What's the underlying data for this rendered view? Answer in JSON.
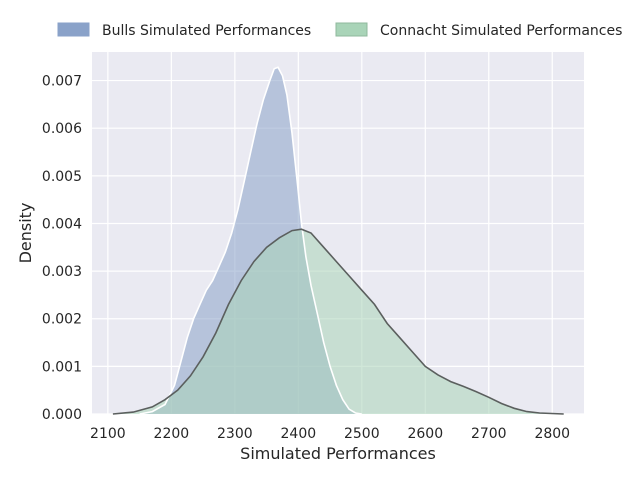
{
  "chart_data": {
    "type": "area",
    "xlabel": "Simulated Performances",
    "ylabel": "Density",
    "xlim": [
      2075,
      2850
    ],
    "ylim": [
      0,
      0.0076
    ],
    "x_ticks": [
      2100,
      2200,
      2300,
      2400,
      2500,
      2600,
      2700,
      2800
    ],
    "y_ticks": [
      0.0,
      0.001,
      0.002,
      0.003,
      0.004,
      0.005,
      0.006,
      0.007
    ],
    "y_tick_labels": [
      "0.000",
      "0.001",
      "0.002",
      "0.003",
      "0.004",
      "0.005",
      "0.006",
      "0.007"
    ],
    "grid": true,
    "legend_position": "top",
    "series": [
      {
        "name": "Bulls Simulated Performances",
        "color": "#8aa2c9",
        "edge": "#ffffff",
        "points": [
          [
            2150,
            0.0
          ],
          [
            2170,
            5e-05
          ],
          [
            2190,
            0.0002
          ],
          [
            2205,
            0.0006
          ],
          [
            2215,
            0.0011
          ],
          [
            2225,
            0.0016
          ],
          [
            2235,
            0.002
          ],
          [
            2245,
            0.0023
          ],
          [
            2255,
            0.0026
          ],
          [
            2265,
            0.0028
          ],
          [
            2275,
            0.0031
          ],
          [
            2285,
            0.0034
          ],
          [
            2295,
            0.0038
          ],
          [
            2305,
            0.0043
          ],
          [
            2315,
            0.0049
          ],
          [
            2325,
            0.0055
          ],
          [
            2335,
            0.0061
          ],
          [
            2345,
            0.0066
          ],
          [
            2355,
            0.007
          ],
          [
            2362,
            0.00725
          ],
          [
            2368,
            0.00728
          ],
          [
            2375,
            0.0071
          ],
          [
            2382,
            0.0067
          ],
          [
            2390,
            0.0059
          ],
          [
            2398,
            0.0049
          ],
          [
            2405,
            0.004
          ],
          [
            2412,
            0.0033
          ],
          [
            2420,
            0.0027
          ],
          [
            2430,
            0.0021
          ],
          [
            2440,
            0.0015
          ],
          [
            2450,
            0.001
          ],
          [
            2460,
            0.0006
          ],
          [
            2470,
            0.0003
          ],
          [
            2480,
            0.0001
          ],
          [
            2490,
            2e-05
          ],
          [
            2500,
            0.0
          ]
        ]
      },
      {
        "name": "Connacht Simulated Performances",
        "color": "#a9d4b8",
        "edge": "#5b5f5e",
        "points": [
          [
            2108,
            0.0
          ],
          [
            2140,
            4e-05
          ],
          [
            2170,
            0.00015
          ],
          [
            2190,
            0.0003
          ],
          [
            2210,
            0.0005
          ],
          [
            2230,
            0.0008
          ],
          [
            2250,
            0.0012
          ],
          [
            2270,
            0.0017
          ],
          [
            2290,
            0.0023
          ],
          [
            2310,
            0.0028
          ],
          [
            2330,
            0.0032
          ],
          [
            2350,
            0.0035
          ],
          [
            2370,
            0.0037
          ],
          [
            2390,
            0.00385
          ],
          [
            2405,
            0.00388
          ],
          [
            2420,
            0.0038
          ],
          [
            2440,
            0.0035
          ],
          [
            2460,
            0.0032
          ],
          [
            2480,
            0.0029
          ],
          [
            2500,
            0.0026
          ],
          [
            2520,
            0.0023
          ],
          [
            2540,
            0.0019
          ],
          [
            2560,
            0.0016
          ],
          [
            2580,
            0.0013
          ],
          [
            2600,
            0.001
          ],
          [
            2620,
            0.00082
          ],
          [
            2640,
            0.00068
          ],
          [
            2660,
            0.00058
          ],
          [
            2680,
            0.00047
          ],
          [
            2700,
            0.00035
          ],
          [
            2720,
            0.00022
          ],
          [
            2740,
            0.00012
          ],
          [
            2760,
            5e-05
          ],
          [
            2780,
            2e-05
          ],
          [
            2818,
            0.0
          ]
        ]
      }
    ]
  }
}
